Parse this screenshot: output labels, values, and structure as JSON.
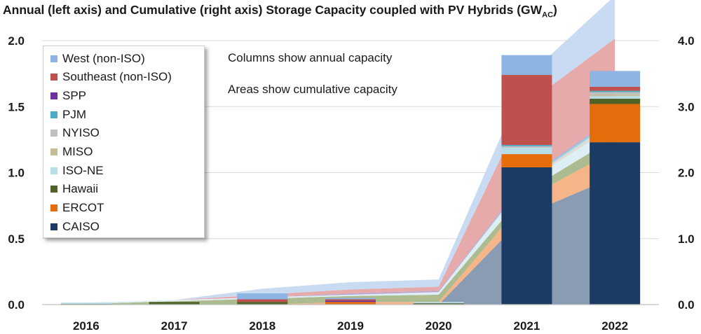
{
  "chart_data": {
    "type": "bar",
    "title_main": "Annual (left axis) and Cumulative (right axis) Storage Capacity coupled with PV Hybrids (GW",
    "title_sub": "AC",
    "title_end": ")",
    "annotations": [
      "Columns show annual capacity",
      "Areas show cumulative capacity"
    ],
    "categories": [
      "2016",
      "2017",
      "2018",
      "2019",
      "2020",
      "2021",
      "2022"
    ],
    "y_left": {
      "ylim": [
        0,
        2.0
      ],
      "ticks": [
        "0.0",
        "0.5",
        "1.0",
        "1.5",
        "2.0"
      ]
    },
    "y_right": {
      "ylim": [
        0,
        4.0
      ],
      "ticks": [
        "0.0",
        "1.0",
        "2.0",
        "3.0",
        "4.0"
      ]
    },
    "grid": true,
    "legend_placement": "top-left",
    "annual_series": [
      {
        "name": "CAISO",
        "color": "#1b3a64",
        "values": [
          0,
          0,
          0,
          0,
          0,
          1.04,
          1.23
        ]
      },
      {
        "name": "ERCOT",
        "color": "#e46c0a",
        "values": [
          0,
          0,
          0,
          0.02,
          0,
          0.1,
          0.29
        ]
      },
      {
        "name": "Hawaii",
        "color": "#4f6228",
        "values": [
          0.005,
          0.02,
          0.02,
          0,
          0.01,
          0,
          0.04
        ]
      },
      {
        "name": "ISO-NE",
        "color": "#b7dde8",
        "values": [
          0.01,
          0,
          0,
          0,
          0.01,
          0.05,
          0.02
        ]
      },
      {
        "name": "MISO",
        "color": "#c4bd97",
        "values": [
          0,
          0,
          0,
          0,
          0,
          0,
          0.01
        ]
      },
      {
        "name": "NYISO",
        "color": "#bfbfbf",
        "values": [
          0,
          0,
          0,
          0,
          0,
          0.01,
          0.02
        ]
      },
      {
        "name": "PJM",
        "color": "#4bacc6",
        "values": [
          0,
          0,
          0,
          0,
          0,
          0.01,
          0.01
        ]
      },
      {
        "name": "SPP",
        "color": "#7030a0",
        "values": [
          0,
          0,
          0,
          0.01,
          0,
          0,
          0
        ]
      },
      {
        "name": "Southeast (non-ISO)",
        "color": "#c0504d",
        "values": [
          0,
          0,
          0.02,
          0.01,
          0,
          0.53,
          0.03
        ]
      },
      {
        "name": "West (non-ISO)",
        "color": "#8eb4e3",
        "values": [
          0,
          0,
          0.045,
          0.01,
          0,
          0.15,
          0.12
        ]
      }
    ],
    "cumulative_series": [
      {
        "name": "CAISO",
        "color": "#8497b0",
        "values": [
          0,
          0,
          0,
          0,
          0,
          1.37,
          1.94
        ]
      },
      {
        "name": "ERCOT",
        "color": "#f4b183",
        "values": [
          0,
          0,
          0,
          0.04,
          0.04,
          0.24,
          0.4
        ]
      },
      {
        "name": "Hawaii",
        "color": "#a9b78a",
        "values": [
          0.01,
          0.05,
          0.09,
          0.09,
          0.11,
          0.11,
          0.19
        ]
      },
      {
        "name": "ISO-NE",
        "color": "#dbeef3",
        "values": [
          0.02,
          0.02,
          0.02,
          0.02,
          0.04,
          0.14,
          0.18
        ]
      },
      {
        "name": "MISO",
        "color": "#ddd9c4",
        "values": [
          0,
          0,
          0,
          0,
          0,
          0,
          0.02
        ]
      },
      {
        "name": "NYISO",
        "color": "#d9d9d9",
        "values": [
          0,
          0,
          0,
          0,
          0,
          0.02,
          0.06
        ]
      },
      {
        "name": "PJM",
        "color": "#92cddc",
        "values": [
          0,
          0,
          0,
          0,
          0,
          0.02,
          0.04
        ]
      },
      {
        "name": "SPP",
        "color": "#b4a0d0",
        "values": [
          0,
          0,
          0,
          0.02,
          0.02,
          0.02,
          0.02
        ]
      },
      {
        "name": "Southeast (non-ISO)",
        "color": "#e6a5a5",
        "values": [
          0,
          0,
          0.04,
          0.06,
          0.06,
          1.12,
          1.18
        ]
      },
      {
        "name": "West (non-ISO)",
        "color": "#c5d9f1",
        "values": [
          0,
          0,
          0.09,
          0.11,
          0.11,
          0.41,
          0.65
        ]
      }
    ],
    "legend_order": [
      "West (non-ISO)",
      "Southeast (non-ISO)",
      "SPP",
      "PJM",
      "NYISO",
      "MISO",
      "ISO-NE",
      "Hawaii",
      "ERCOT",
      "CAISO"
    ]
  }
}
